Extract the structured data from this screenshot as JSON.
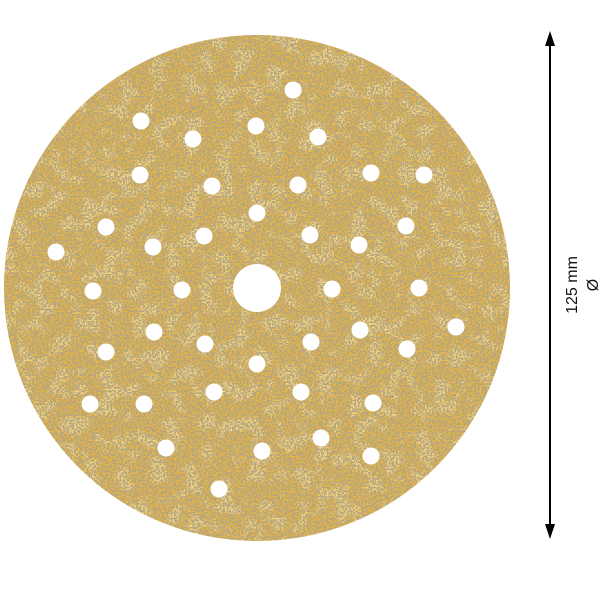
{
  "product": {
    "disc_color": "#e9b441",
    "grit_color": "#7d6a3f",
    "hole_color": "#ffffff"
  },
  "dimension": {
    "value": "125 mm",
    "symbol": "Ø",
    "arrow_color": "#000000"
  }
}
